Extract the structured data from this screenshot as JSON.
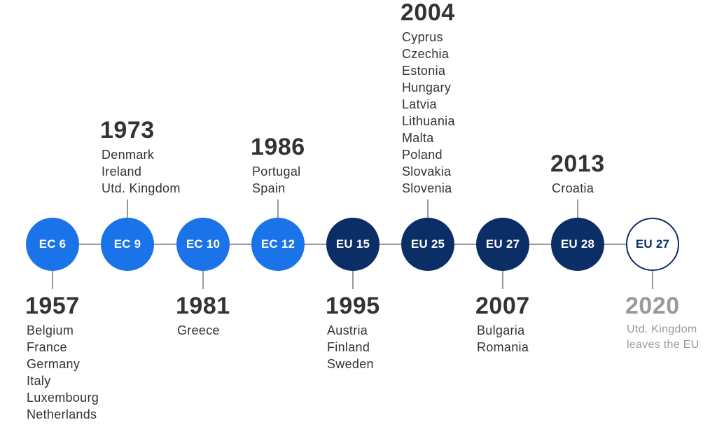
{
  "accent_colors": {
    "ec": "#1a73e8",
    "eu": "#0b2e66",
    "muted": "#9a9a9a"
  },
  "stages": [
    {
      "label": "EC 6",
      "year": "1957",
      "style": "ec",
      "side": "below",
      "countries": [
        "Belgium",
        "France",
        "Germany",
        "Italy",
        "Luxembourg",
        "Netherlands"
      ]
    },
    {
      "label": "EC 9",
      "year": "1973",
      "style": "ec",
      "side": "above",
      "countries": [
        "Denmark",
        "Ireland",
        "Utd. Kingdom"
      ]
    },
    {
      "label": "EC 10",
      "year": "1981",
      "style": "ec",
      "side": "below",
      "countries": [
        "Greece"
      ]
    },
    {
      "label": "EC 12",
      "year": "1986",
      "style": "ec",
      "side": "above",
      "countries": [
        "Portugal",
        "Spain"
      ]
    },
    {
      "label": "EU 15",
      "year": "1995",
      "style": "eu",
      "side": "below",
      "countries": [
        "Austria",
        "Finland",
        "Sweden"
      ]
    },
    {
      "label": "EU 25",
      "year": "2004",
      "style": "eu",
      "side": "above",
      "countries": [
        "Cyprus",
        "Czechia",
        "Estonia",
        "Hungary",
        "Latvia",
        "Lithuania",
        "Malta",
        "Poland",
        "Slovakia",
        "Slovenia"
      ]
    },
    {
      "label": "EU 27",
      "year": "2007",
      "style": "eu",
      "side": "below",
      "countries": [
        "Bulgaria",
        "Romania"
      ]
    },
    {
      "label": "EU 28",
      "year": "2013",
      "style": "eu",
      "side": "above",
      "countries": [
        "Croatia"
      ]
    },
    {
      "label": "EU 27",
      "year": "2020",
      "style": "outline",
      "side": "below",
      "muted": true,
      "countries": [
        "Utd. Kingdom",
        "leaves the EU"
      ]
    }
  ]
}
